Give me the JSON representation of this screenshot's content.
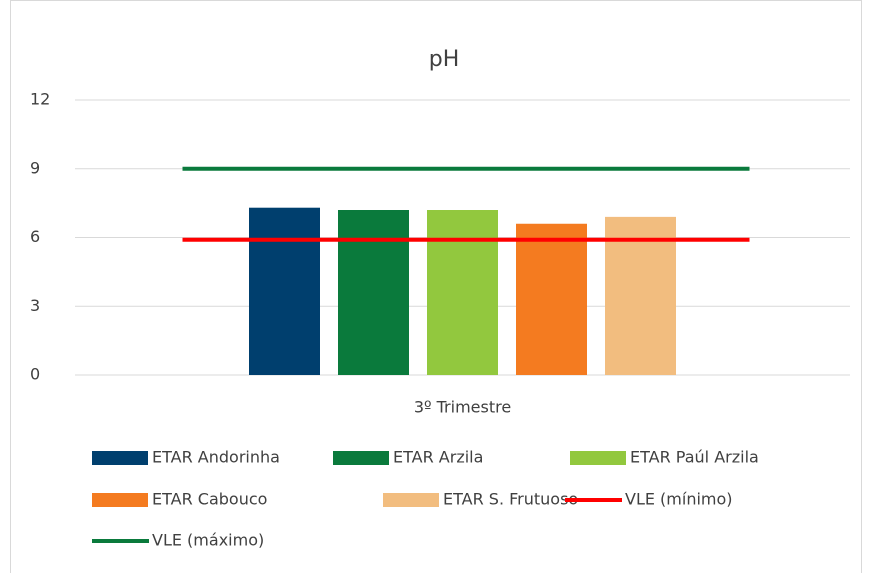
{
  "chart_data": {
    "type": "bar",
    "title": "pH",
    "categories": [
      "3º Trimestre"
    ],
    "ylim": [
      0,
      12
    ],
    "yticks": [
      0,
      3,
      6,
      9,
      12
    ],
    "grid": true,
    "series": [
      {
        "name": "ETAR Andorinha",
        "color": "#003f6e",
        "type": "bar",
        "values": [
          7.3
        ]
      },
      {
        "name": "ETAR Arzila",
        "color": "#0a7a3c",
        "type": "bar",
        "values": [
          7.2
        ]
      },
      {
        "name": "ETAR Paúl Arzila",
        "color": "#92c83e",
        "type": "bar",
        "values": [
          7.2
        ]
      },
      {
        "name": "ETAR Cabouco",
        "color": "#f47b20",
        "type": "bar",
        "values": [
          6.6
        ]
      },
      {
        "name": "ETAR S. Frutuoso",
        "color": "#f2bd7f",
        "type": "bar",
        "values": [
          6.9
        ]
      },
      {
        "name": "VLE (mínimo)",
        "color": "#ff0000",
        "type": "line",
        "values": [
          5.9
        ]
      },
      {
        "name": "VLE (máximo)",
        "color": "#0a7a3c",
        "type": "line",
        "values": [
          9
        ]
      }
    ]
  }
}
